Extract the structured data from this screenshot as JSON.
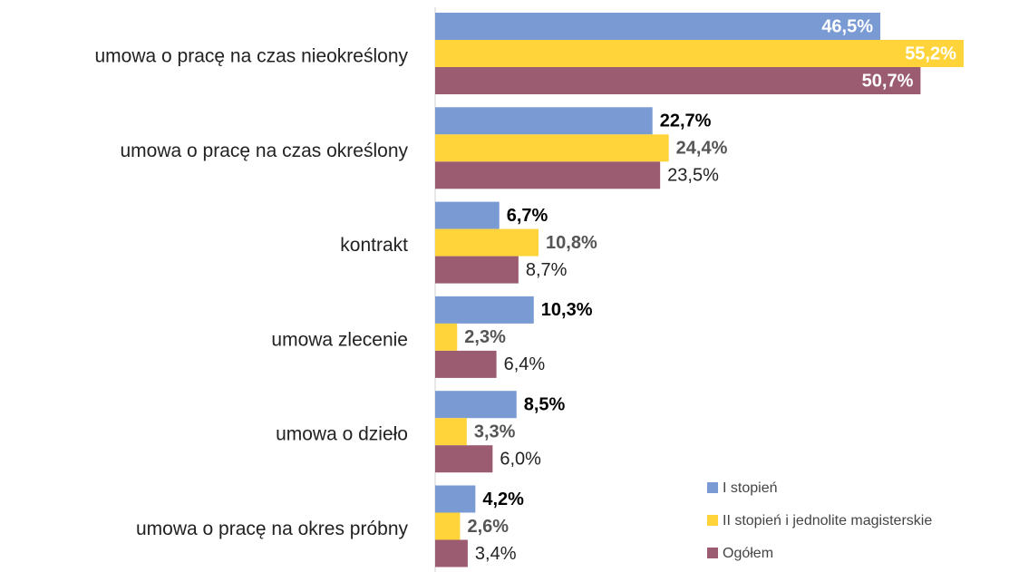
{
  "chart_data": {
    "type": "bar",
    "orientation": "horizontal",
    "categories": [
      "umowa o pracę na czas nieokreślony",
      "umowa o pracę na czas określony",
      "kontrakt",
      "umowa zlecenie",
      "umowa o dzieło",
      "umowa o pracę na okres próbny"
    ],
    "series": [
      {
        "name": "I stopień",
        "color": "#7a9ad4",
        "values": [
          46.5,
          22.7,
          6.7,
          10.3,
          8.5,
          4.2
        ],
        "value_labels": [
          "46,5%",
          "22,7%",
          "6,7%",
          "10,3%",
          "8,5%",
          "4,2%"
        ]
      },
      {
        "name": "II stopień i jednolite magisterskie",
        "color": "#ffd43b",
        "values": [
          55.2,
          24.4,
          10.8,
          2.3,
          3.3,
          2.6
        ],
        "value_labels": [
          "55,2%",
          "24,4%",
          "10,8%",
          "2,3%",
          "3,3%",
          "2,6%"
        ]
      },
      {
        "name": "Ogółem",
        "color": "#9b5c72",
        "values": [
          50.7,
          23.5,
          8.7,
          6.4,
          6.0,
          3.4
        ],
        "value_labels": [
          "50,7%",
          "23,5%",
          "8,7%",
          "6,4%",
          "6,0%",
          "3,4%"
        ]
      }
    ],
    "legend": "bottom-right"
  }
}
